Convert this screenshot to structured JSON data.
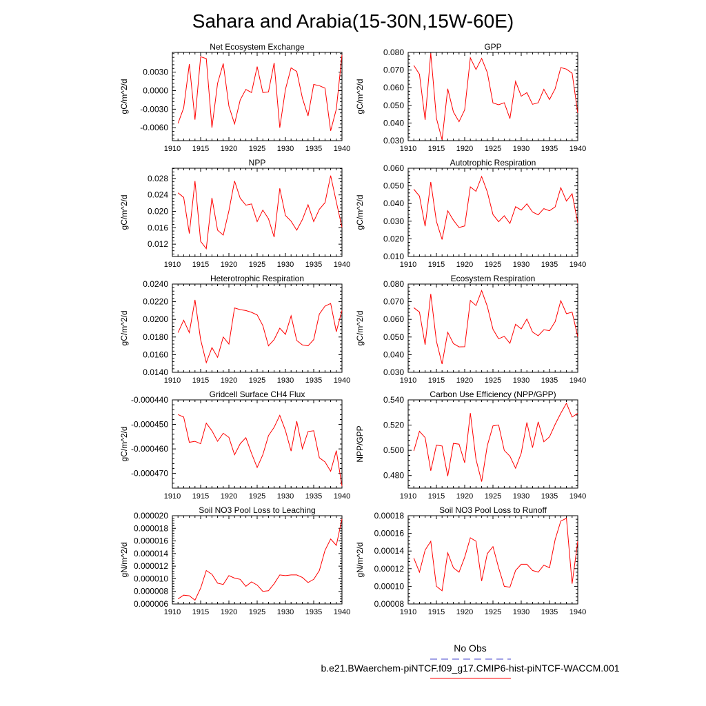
{
  "title": "Sahara and Arabia(15-30N,15W-60E)",
  "legend": {
    "obs_label": "No Obs",
    "obs_color": "#4444cc",
    "model_label": "b.e21.BWaerchem-piNTCF.f09_g17.CMIP6-hist-piNTCF-WACCM.001",
    "model_color": "#ff0000"
  },
  "chart_data": [
    {
      "type": "line",
      "title": "Net Ecosystem Exchange",
      "ylabel": "gC/m^2/d",
      "xlim": [
        1910,
        1940
      ],
      "ylim": [
        -0.0081,
        0.0062
      ],
      "yticks": [
        -0.006,
        -0.003,
        0.0,
        0.003
      ],
      "ytick_labels": [
        "-0.0060",
        "-0.0030",
        "0.0000",
        "0.0030"
      ],
      "xticks": [
        1910,
        1915,
        1920,
        1925,
        1930,
        1935,
        1940
      ],
      "series": [
        {
          "x": [
            1911,
            1912,
            1913,
            1914,
            1915,
            1916,
            1917,
            1918,
            1919,
            1920,
            1921,
            1922,
            1923,
            1924,
            1925,
            1926,
            1927,
            1928,
            1929,
            1930,
            1931,
            1932,
            1933,
            1934,
            1935,
            1936,
            1937,
            1938,
            1939,
            1940
          ],
          "values": [
            -0.0053,
            -0.0028,
            0.0043,
            -0.0047,
            0.0055,
            0.0052,
            -0.006,
            0.0012,
            0.0044,
            -0.0025,
            -0.0054,
            -0.0015,
            0.0002,
            -0.0003,
            0.0039,
            -0.0003,
            -0.0002,
            0.0045,
            -0.006,
            0.0002,
            0.0037,
            0.0031,
            -0.0012,
            -0.0041,
            0.001,
            0.0008,
            0.0004,
            -0.0065,
            -0.003,
            0.0058
          ]
        }
      ]
    },
    {
      "type": "line",
      "title": "GPP",
      "ylabel": "gC/m^2/d",
      "xlim": [
        1910,
        1940
      ],
      "ylim": [
        0.03,
        0.08
      ],
      "yticks": [
        0.03,
        0.04,
        0.05,
        0.06,
        0.07,
        0.08
      ],
      "ytick_labels": [
        "0.030",
        "0.040",
        "0.050",
        "0.060",
        "0.070",
        "0.080"
      ],
      "xticks": [
        1910,
        1915,
        1920,
        1925,
        1930,
        1935,
        1940
      ],
      "series": [
        {
          "x": [
            1911,
            1912,
            1913,
            1914,
            1915,
            1916,
            1917,
            1918,
            1919,
            1920,
            1921,
            1922,
            1923,
            1924,
            1925,
            1926,
            1927,
            1928,
            1929,
            1930,
            1931,
            1932,
            1933,
            1934,
            1935,
            1936,
            1937,
            1938,
            1939,
            1940
          ],
          "values": [
            0.0726,
            0.0676,
            0.0418,
            0.0795,
            0.0427,
            0.0305,
            0.0594,
            0.0463,
            0.0407,
            0.0475,
            0.0769,
            0.0703,
            0.0766,
            0.0686,
            0.0514,
            0.0503,
            0.0515,
            0.0425,
            0.0636,
            0.0552,
            0.0572,
            0.0506,
            0.0515,
            0.0591,
            0.0533,
            0.0594,
            0.0714,
            0.0705,
            0.0682,
            0.0457
          ]
        }
      ]
    },
    {
      "type": "line",
      "title": "NPP",
      "ylabel": "gC/m^2/d",
      "xlim": [
        1910,
        1940
      ],
      "ylim": [
        0.009,
        0.0305
      ],
      "yticks": [
        0.012,
        0.016,
        0.02,
        0.024,
        0.028
      ],
      "ytick_labels": [
        "0.012",
        "0.016",
        "0.020",
        "0.024",
        "0.028"
      ],
      "xticks": [
        1910,
        1915,
        1920,
        1925,
        1930,
        1935,
        1940
      ],
      "series": [
        {
          "x": [
            1911,
            1912,
            1913,
            1914,
            1915,
            1916,
            1917,
            1918,
            1919,
            1920,
            1921,
            1922,
            1923,
            1924,
            1925,
            1926,
            1927,
            1928,
            1929,
            1930,
            1931,
            1932,
            1933,
            1934,
            1935,
            1936,
            1937,
            1938,
            1939,
            1940
          ],
          "values": [
            0.0245,
            0.0234,
            0.0146,
            0.0274,
            0.0127,
            0.0109,
            0.0233,
            0.0154,
            0.0142,
            0.0201,
            0.0274,
            0.0232,
            0.0215,
            0.0218,
            0.0175,
            0.0203,
            0.0182,
            0.0137,
            0.0256,
            0.019,
            0.0176,
            0.0154,
            0.018,
            0.0216,
            0.0175,
            0.0205,
            0.0221,
            0.0287,
            0.0223,
            0.0161
          ]
        }
      ]
    },
    {
      "type": "line",
      "title": "Autotrophic Respiration",
      "ylabel": "gC/m^2/d",
      "xlim": [
        1910,
        1940
      ],
      "ylim": [
        0.01,
        0.06
      ],
      "yticks": [
        0.01,
        0.02,
        0.03,
        0.04,
        0.05,
        0.06
      ],
      "ytick_labels": [
        "0.010",
        "0.020",
        "0.030",
        "0.040",
        "0.050",
        "0.060"
      ],
      "xticks": [
        1910,
        1915,
        1920,
        1925,
        1930,
        1935,
        1940
      ],
      "series": [
        {
          "x": [
            1911,
            1912,
            1913,
            1914,
            1915,
            1916,
            1917,
            1918,
            1919,
            1920,
            1921,
            1922,
            1923,
            1924,
            1925,
            1926,
            1927,
            1928,
            1929,
            1930,
            1931,
            1932,
            1933,
            1934,
            1935,
            1936,
            1937,
            1938,
            1939,
            1940
          ],
          "values": [
            0.0481,
            0.0442,
            0.0271,
            0.0522,
            0.0299,
            0.0196,
            0.0359,
            0.0306,
            0.0264,
            0.0273,
            0.0494,
            0.0469,
            0.0553,
            0.0466,
            0.0338,
            0.0297,
            0.0331,
            0.0287,
            0.0382,
            0.0363,
            0.0398,
            0.0352,
            0.0336,
            0.0371,
            0.0359,
            0.0381,
            0.049,
            0.0414,
            0.0455,
            0.0291
          ]
        }
      ]
    },
    {
      "type": "line",
      "title": "Heterotrophic Respiration",
      "ylabel": "gC/m^2/d",
      "xlim": [
        1910,
        1940
      ],
      "ylim": [
        0.014,
        0.024
      ],
      "yticks": [
        0.014,
        0.016,
        0.018,
        0.02,
        0.022,
        0.024
      ],
      "ytick_labels": [
        "0.0140",
        "0.0160",
        "0.0180",
        "0.0200",
        "0.0220",
        "0.0240"
      ],
      "xticks": [
        1910,
        1915,
        1920,
        1925,
        1930,
        1935,
        1940
      ],
      "series": [
        {
          "x": [
            1911,
            1912,
            1913,
            1914,
            1915,
            1916,
            1917,
            1918,
            1919,
            1920,
            1921,
            1922,
            1923,
            1924,
            1925,
            1926,
            1927,
            1928,
            1929,
            1930,
            1931,
            1932,
            1933,
            1934,
            1935,
            1936,
            1937,
            1938,
            1939,
            1940
          ],
          "values": [
            0.0185,
            0.0199,
            0.0185,
            0.0222,
            0.0177,
            0.0151,
            0.0168,
            0.0157,
            0.018,
            0.0172,
            0.0213,
            0.0211,
            0.021,
            0.0208,
            0.0205,
            0.0193,
            0.017,
            0.0177,
            0.019,
            0.0183,
            0.0204,
            0.0176,
            0.0171,
            0.017,
            0.0177,
            0.0206,
            0.0215,
            0.0218,
            0.0186,
            0.021
          ]
        }
      ]
    },
    {
      "type": "line",
      "title": "Ecosystem Respiration",
      "ylabel": "gC/m^2/d",
      "xlim": [
        1910,
        1940
      ],
      "ylim": [
        0.03,
        0.08
      ],
      "yticks": [
        0.03,
        0.04,
        0.05,
        0.06,
        0.07,
        0.08
      ],
      "ytick_labels": [
        "0.030",
        "0.040",
        "0.050",
        "0.060",
        "0.070",
        "0.080"
      ],
      "xticks": [
        1910,
        1915,
        1920,
        1925,
        1930,
        1935,
        1940
      ],
      "series": [
        {
          "x": [
            1911,
            1912,
            1913,
            1914,
            1915,
            1916,
            1917,
            1918,
            1919,
            1920,
            1921,
            1922,
            1923,
            1924,
            1925,
            1926,
            1927,
            1928,
            1929,
            1930,
            1931,
            1932,
            1933,
            1934,
            1935,
            1936,
            1937,
            1938,
            1939,
            1940
          ],
          "values": [
            0.0666,
            0.0641,
            0.0456,
            0.0744,
            0.0476,
            0.0347,
            0.0527,
            0.0463,
            0.0444,
            0.0445,
            0.0707,
            0.0678,
            0.0763,
            0.0674,
            0.0544,
            0.049,
            0.0504,
            0.0464,
            0.0572,
            0.0546,
            0.0602,
            0.0528,
            0.0507,
            0.0541,
            0.0536,
            0.0587,
            0.0706,
            0.0632,
            0.0641,
            0.0501
          ]
        }
      ]
    },
    {
      "type": "line",
      "title": "Gridcell Surface CH4 Flux",
      "ylabel": "gC/m^2/d",
      "xlim": [
        1910,
        1940
      ],
      "ylim": [
        -0.000476,
        -0.00044
      ],
      "yticks": [
        -0.00047,
        -0.00046,
        -0.00045,
        -0.00044
      ],
      "ytick_labels": [
        "-0.000470",
        "-0.000460",
        "-0.000450",
        "-0.000440"
      ],
      "xticks": [
        1910,
        1915,
        1920,
        1925,
        1930,
        1935,
        1940
      ],
      "series": [
        {
          "x": [
            1911,
            1912,
            1913,
            1914,
            1915,
            1916,
            1917,
            1918,
            1919,
            1920,
            1921,
            1922,
            1923,
            1924,
            1925,
            1926,
            1927,
            1928,
            1929,
            1930,
            1931,
            1932,
            1933,
            1934,
            1935,
            1936,
            1937,
            1938,
            1939,
            1940
          ],
          "values": [
            -0.000446,
            -0.000447,
            -0.0004573,
            -0.0004569,
            -0.0004579,
            -0.0004495,
            -0.0004526,
            -0.0004569,
            -0.0004536,
            -0.0004553,
            -0.0004624,
            -0.0004579,
            -0.0004554,
            -0.0004618,
            -0.0004676,
            -0.0004624,
            -0.0004546,
            -0.0004512,
            -0.0004463,
            -0.0004525,
            -0.0004609,
            -0.0004487,
            -0.0004599,
            -0.0004529,
            -0.0004526,
            -0.0004636,
            -0.0004653,
            -0.0004691,
            -0.0004607,
            -0.0004752
          ]
        }
      ]
    },
    {
      "type": "line",
      "title": "Carbon Use Efficiency (NPP/GPP)",
      "ylabel": "NPP/GPP",
      "xlim": [
        1910,
        1940
      ],
      "ylim": [
        0.47,
        0.54
      ],
      "yticks": [
        0.48,
        0.5,
        0.52,
        0.54
      ],
      "ytick_labels": [
        "0.480",
        "0.500",
        "0.520",
        "0.540"
      ],
      "xticks": [
        1910,
        1915,
        1920,
        1925,
        1930,
        1935,
        1940
      ],
      "series": [
        {
          "x": [
            1911,
            1912,
            1913,
            1914,
            1915,
            1916,
            1917,
            1918,
            1919,
            1920,
            1921,
            1922,
            1923,
            1924,
            1925,
            1926,
            1927,
            1928,
            1929,
            1930,
            1931,
            1932,
            1933,
            1934,
            1935,
            1936,
            1937,
            1938,
            1939,
            1940
          ],
          "values": [
            0.4995,
            0.5151,
            0.5101,
            0.4838,
            0.5041,
            0.5034,
            0.4795,
            0.5055,
            0.5049,
            0.4901,
            0.5295,
            0.4928,
            0.4752,
            0.5037,
            0.5194,
            0.5201,
            0.4999,
            0.4953,
            0.4858,
            0.4977,
            0.5221,
            0.5021,
            0.5226,
            0.5068,
            0.5107,
            0.5206,
            0.5294,
            0.5373,
            0.5264,
            0.5294
          ]
        }
      ]
    },
    {
      "type": "line",
      "title": "Soil NO3 Pool Loss to Leaching",
      "ylabel": "gN/m^2/d",
      "xlim": [
        1910,
        1940
      ],
      "ylim": [
        6e-06,
        2e-05
      ],
      "yticks": [
        6e-06,
        8e-06,
        1e-05,
        1.2e-05,
        1.4e-05,
        1.6e-05,
        1.8e-05,
        2e-05
      ],
      "ytick_labels": [
        "0.000006",
        "0.000008",
        "0.000010",
        "0.000012",
        "0.000014",
        "0.000016",
        "0.000018",
        "0.000020"
      ],
      "xticks": [
        1910,
        1915,
        1920,
        1925,
        1930,
        1935,
        1940
      ],
      "series": [
        {
          "x": [
            1911,
            1912,
            1913,
            1914,
            1915,
            1916,
            1917,
            1918,
            1919,
            1920,
            1921,
            1922,
            1923,
            1924,
            1925,
            1926,
            1927,
            1928,
            1929,
            1930,
            1931,
            1932,
            1933,
            1934,
            1935,
            1936,
            1937,
            1938,
            1939,
            1940
          ],
          "values": [
            6.8e-06,
            7.4e-06,
            7.3e-06,
            6.6e-06,
            8.5e-06,
            1.13e-05,
            1.07e-05,
            9.3e-06,
            9.1e-06,
            1.05e-05,
            1.01e-05,
            9.9e-06,
            8.8e-06,
            9.5e-06,
            9e-06,
            8e-06,
            8.1e-06,
            9.2e-06,
            1.06e-05,
            1.05e-05,
            1.06e-05,
            1.06e-05,
            1.02e-05,
            9.4e-06,
            9.9e-06,
            1.13e-05,
            1.45e-05,
            1.63e-05,
            1.53e-05,
            1.95e-05
          ]
        }
      ]
    },
    {
      "type": "line",
      "title": "Soil NO3 Pool Loss to Runoff",
      "ylabel": "gN/m^2/d",
      "xlim": [
        1910,
        1940
      ],
      "ylim": [
        8e-05,
        0.00018
      ],
      "yticks": [
        8e-05,
        0.0001,
        0.00012,
        0.00014,
        0.00016,
        0.00018
      ],
      "ytick_labels": [
        "0.00008",
        "0.00010",
        "0.00012",
        "0.00014",
        "0.00016",
        "0.00018"
      ],
      "xticks": [
        1910,
        1915,
        1920,
        1925,
        1930,
        1935,
        1940
      ],
      "series": [
        {
          "x": [
            1911,
            1912,
            1913,
            1914,
            1915,
            1916,
            1917,
            1918,
            1919,
            1920,
            1921,
            1922,
            1923,
            1924,
            1925,
            1926,
            1927,
            1928,
            1929,
            1930,
            1931,
            1932,
            1933,
            1934,
            1935,
            1936,
            1937,
            1938,
            1939,
            1940
          ],
          "values": [
            0.000132,
            0.000116,
            0.000141,
            0.000151,
            0.0001,
            9.5e-05,
            0.000138,
            0.000121,
            0.000116,
            0.000133,
            0.000155,
            0.000151,
            0.000106,
            0.000137,
            0.000145,
            0.000121,
            0.0001,
            9.9e-05,
            0.000118,
            0.000125,
            0.000125,
            0.000118,
            0.000116,
            0.000124,
            0.000121,
            0.000153,
            0.000174,
            0.000177,
            0.000103,
            0.000151
          ]
        }
      ]
    }
  ]
}
